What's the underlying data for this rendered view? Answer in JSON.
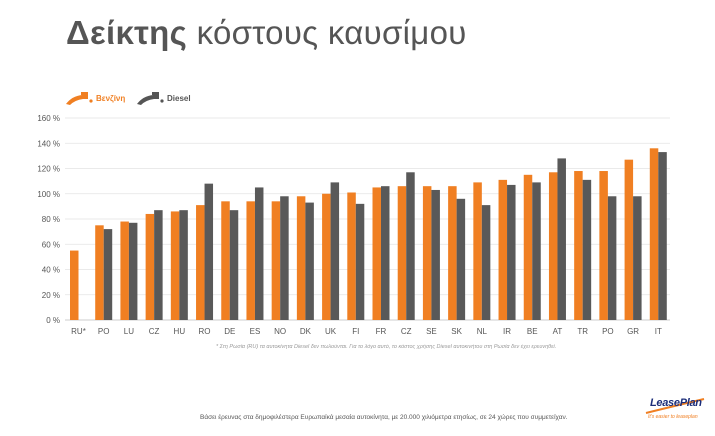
{
  "title": {
    "bold": "Δείκτης",
    "rest": "κόστους καυσίμου"
  },
  "legend": {
    "petrol": "Βενζίνη",
    "diesel": "Diesel"
  },
  "colors": {
    "petrol": "#F07F22",
    "diesel": "#595959",
    "axis_text": "#555555",
    "grid": "#E3E3E3"
  },
  "chart_data": {
    "type": "bar",
    "categories": [
      "RU*",
      "PO",
      "LU",
      "CZ",
      "HU",
      "RO",
      "DE",
      "ES",
      "NO",
      "DK",
      "UK",
      "FI",
      "FR",
      "CZ",
      "SE",
      "SK",
      "NL",
      "IR",
      "BE",
      "AT",
      "TR",
      "PO",
      "GR",
      "IT"
    ],
    "series": [
      {
        "name": "Βενζίνη",
        "values": [
          55,
          75,
          78,
          84,
          86,
          91,
          94,
          94,
          94,
          98,
          100,
          101,
          105,
          106,
          106,
          106,
          109,
          111,
          115,
          117,
          118,
          118,
          127,
          136
        ]
      },
      {
        "name": "Diesel",
        "values": [
          null,
          72,
          77,
          87,
          87,
          108,
          87,
          105,
          98,
          93,
          109,
          92,
          106,
          117,
          103,
          96,
          91,
          107,
          109,
          128,
          111,
          98,
          98,
          133
        ]
      }
    ],
    "ylim": [
      0,
      160
    ],
    "yticks": [
      "0 %",
      "20 %",
      "40 %",
      "60 %",
      "80 %",
      "100 %",
      "120 %",
      "140 %",
      "160 %"
    ],
    "grid": true,
    "legend_position": "top-left"
  },
  "footnote": "* Στη Ρωσία (RU) τα αυτοκίνητα Diesel δεν πωλούνται. Για το λόγο αυτό, το κόστος χρήσης Diesel αυτοκινήτου στη Ρωσία δεν έχει ερευνηθεί.",
  "source": "Βάσει έρευνας στα δημοφιλέστερα Ευρωπαϊκά μεσαία αυτοκίνητα, με 20.000 χιλιόμετρα ετησίως, σε 24 χώρες που συμμετείχαν.",
  "logo": {
    "name": "LeasePlan",
    "tagline": "It's easier to leaseplan"
  }
}
